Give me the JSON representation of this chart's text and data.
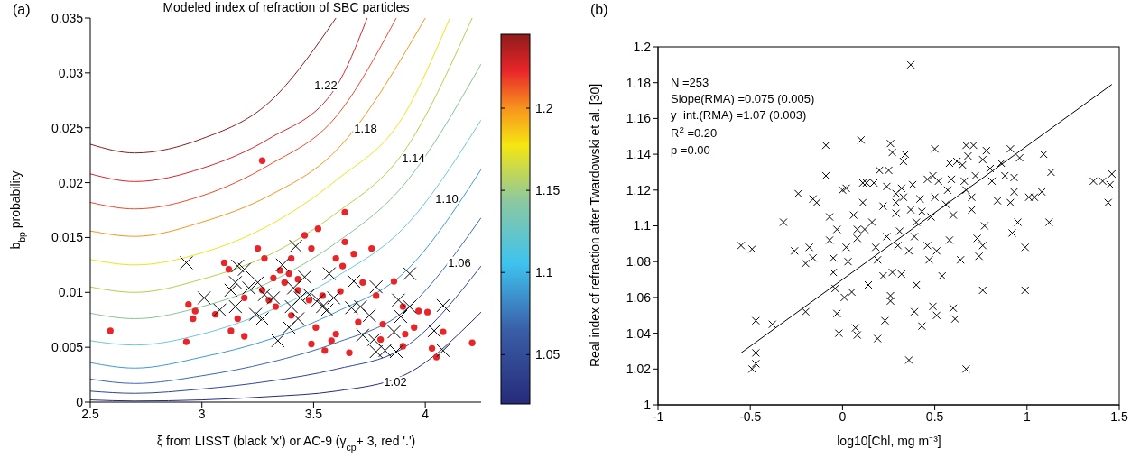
{
  "chart_data": [
    {
      "type": "scatter",
      "title": "Modeled index of refraction of SBC particles",
      "xlabel": "ξ from LISST (black 'x') or AC-9 (γ$_{cp}$+ 3, red '.')",
      "ylabel": "b$_{bp}$ probability",
      "xlim": [
        2.5,
        4.25
      ],
      "xticks": [
        2.5,
        3,
        3.5,
        4
      ],
      "ylim": [
        0,
        0.035
      ],
      "yticks": [
        0,
        0.005,
        0.01,
        0.015,
        0.02,
        0.025,
        0.03,
        0.035
      ],
      "clim": [
        1.02,
        1.245
      ],
      "cticks": [
        1.05,
        1.1,
        1.15,
        1.2
      ],
      "annotations": [
        "(a)",
        "1.22",
        "1.18",
        "1.14",
        "1.10",
        "1.06",
        "1.02"
      ],
      "series": [
        {
          "type": "line",
          "color": "#8f1c1c",
          "x": [
            2.5,
            2.7,
            3.0,
            3.3,
            3.6
          ],
          "values": [
            0.0235,
            0.0227,
            0.024,
            0.0273,
            0.035
          ]
        },
        {
          "type": "line",
          "color": "#d8262b",
          "x": [
            2.5,
            2.7,
            3.0,
            3.3,
            3.6,
            3.74
          ],
          "values": [
            0.0208,
            0.0201,
            0.0213,
            0.024,
            0.0287,
            0.035
          ]
        },
        {
          "type": "line",
          "color": "#ec4a2a",
          "x": [
            2.5,
            2.7,
            3.0,
            3.3,
            3.6,
            3.87
          ],
          "values": [
            0.0182,
            0.0176,
            0.0188,
            0.0216,
            0.026,
            0.035
          ]
        },
        {
          "type": "line",
          "color": "#f7941d",
          "x": [
            2.5,
            2.7,
            3.0,
            3.3,
            3.6,
            4.0
          ],
          "values": [
            0.0156,
            0.0151,
            0.0164,
            0.0188,
            0.0229,
            0.035
          ]
        },
        {
          "type": "line",
          "color": "#f2e21a",
          "x": [
            2.5,
            2.7,
            3.0,
            3.3,
            3.6,
            3.9,
            4.11
          ],
          "values": [
            0.013,
            0.0125,
            0.0136,
            0.0161,
            0.0202,
            0.026,
            0.035
          ]
        },
        {
          "type": "line",
          "color": "#b5cf4a",
          "x": [
            2.5,
            2.7,
            3.0,
            3.3,
            3.6,
            3.9,
            4.21
          ],
          "values": [
            0.0105,
            0.01,
            0.0112,
            0.0134,
            0.0172,
            0.0227,
            0.035
          ]
        },
        {
          "type": "line",
          "color": "#88c490",
          "x": [
            2.5,
            2.7,
            3.0,
            3.3,
            3.6,
            3.9,
            4.25
          ],
          "values": [
            0.0081,
            0.0076,
            0.0087,
            0.0109,
            0.0145,
            0.0197,
            0.0308
          ]
        },
        {
          "type": "line",
          "color": "#6cc6dc",
          "x": [
            2.5,
            2.7,
            3.0,
            3.3,
            3.6,
            3.9,
            4.25
          ],
          "values": [
            0.0056,
            0.0052,
            0.0062,
            0.0083,
            0.0114,
            0.0158,
            0.0257
          ]
        },
        {
          "type": "line",
          "color": "#3d9ad6",
          "x": [
            2.5,
            2.7,
            3.0,
            3.3,
            3.6,
            3.9,
            4.25
          ],
          "values": [
            0.0036,
            0.0031,
            0.0041,
            0.0057,
            0.0082,
            0.0117,
            0.0212
          ]
        },
        {
          "type": "line",
          "color": "#3a67b2",
          "x": [
            2.5,
            2.7,
            3.0,
            3.3,
            3.6,
            3.9,
            4.25
          ],
          "values": [
            0.0021,
            0.0017,
            0.0024,
            0.0036,
            0.0054,
            0.0082,
            0.0168
          ]
        },
        {
          "type": "line",
          "color": "#2e469c",
          "x": [
            2.5,
            2.7,
            3.0,
            3.3,
            3.6,
            3.9,
            4.25
          ],
          "values": [
            0.001,
            0.0008,
            0.0012,
            0.0019,
            0.003,
            0.0049,
            0.0124
          ]
        },
        {
          "type": "line",
          "color": "#262c80",
          "x": [
            2.5,
            2.7,
            3.0,
            3.3,
            3.6,
            3.9,
            4.25
          ],
          "values": [
            0.0002,
            0.0001,
            0.0002,
            0.0005,
            0.001,
            0.0024,
            0.0082
          ]
        },
        {
          "marker": "circle",
          "color": "#e8262a",
          "x": [
            2.59,
            2.93,
            2.94,
            2.96,
            2.97,
            3.06,
            3.1,
            3.12,
            3.13,
            3.16,
            3.19,
            3.19,
            3.25,
            3.27,
            3.28,
            3.3,
            3.32,
            3.35,
            3.37,
            3.39,
            3.4,
            3.43,
            3.46,
            3.49,
            3.52,
            3.51,
            3.49,
            3.55,
            3.58,
            3.6,
            3.6,
            3.63,
            3.64,
            3.64,
            3.66,
            3.68,
            3.72,
            3.76,
            3.78,
            3.8,
            3.86,
            3.9,
            3.9,
            3.91,
            3.95,
            3.97,
            4.01,
            4.03,
            4.05,
            4.08,
            4.21,
            3.43,
            3.48,
            3.54,
            3.33,
            3.4,
            3.27,
            3.62,
            3.7,
            3.81
          ],
          "values": [
            0.0065,
            0.0055,
            0.0089,
            0.0076,
            0.0083,
            0.008,
            0.0127,
            0.0121,
            0.0065,
            0.0076,
            0.006,
            0.0095,
            0.014,
            0.022,
            0.0131,
            0.0093,
            0.0113,
            0.012,
            0.0109,
            0.0117,
            0.0131,
            0.0112,
            0.0152,
            0.014,
            0.0158,
            0.0068,
            0.0053,
            0.0047,
            0.0056,
            0.0131,
            0.0062,
            0.0124,
            0.0146,
            0.0173,
            0.0045,
            0.0135,
            0.0109,
            0.014,
            0.0097,
            0.0057,
            0.011,
            0.0087,
            0.0051,
            0.0062,
            0.0068,
            0.0083,
            0.0082,
            0.0049,
            0.0041,
            0.0064,
            0.0054,
            0.0102,
            0.0093,
            0.0097,
            0.0087,
            0.0079,
            0.0102,
            0.0101,
            0.0073,
            0.0071
          ]
        },
        {
          "marker": "cross",
          "color": "#000000",
          "x": [
            2.93,
            3.01,
            3.08,
            3.16,
            3.19,
            3.15,
            3.13,
            3.15,
            3.21,
            3.24,
            3.27,
            3.25,
            3.28,
            3.32,
            3.36,
            3.34,
            3.39,
            3.4,
            3.42,
            3.41,
            3.44,
            3.43,
            3.46,
            3.48,
            3.52,
            3.54,
            3.57,
            3.56,
            3.59,
            3.67,
            3.68,
            3.71,
            3.75,
            3.78,
            3.72,
            3.77,
            3.78,
            3.82,
            3.86,
            3.87,
            3.88,
            3.89,
            3.93,
            3.93,
            4.04,
            4.08,
            4.08
          ],
          "values": [
            0.0127,
            0.0095,
            0.0084,
            0.0124,
            0.0121,
            0.0109,
            0.0102,
            0.0087,
            0.0104,
            0.008,
            0.0076,
            0.0109,
            0.0098,
            0.0095,
            0.0125,
            0.0056,
            0.0068,
            0.0087,
            0.0142,
            0.0104,
            0.0095,
            0.0076,
            0.0114,
            0.0098,
            0.0093,
            0.0087,
            0.0117,
            0.0084,
            0.0095,
            0.0086,
            0.011,
            0.0087,
            0.0079,
            0.0105,
            0.0061,
            0.0057,
            0.0046,
            0.0047,
            0.0064,
            0.0046,
            0.0093,
            0.0078,
            0.0117,
            0.0087,
            0.0065,
            0.0088,
            0.0047
          ]
        }
      ]
    },
    {
      "type": "scatter",
      "xlabel": "log10[Chl, mg m⁻³]",
      "ylabel": "Real index of refraction after Twardowski et al. [30]",
      "xlim": [
        -1,
        1.5
      ],
      "xticks": [
        -1,
        -0.5,
        0,
        0.5,
        1,
        1.5
      ],
      "ylim": [
        1,
        1.2
      ],
      "yticks": [
        1,
        1.02,
        1.04,
        1.06,
        1.08,
        1.1,
        1.12,
        1.14,
        1.16,
        1.18,
        1.2
      ],
      "annotations": [
        "(b)",
        "N =253",
        "Slope(RMA) =0.075 (0.005)",
        "y−int.(RMA) =1.07 (0.003)",
        "R$^{2}$ =0.20",
        "p =0.00"
      ],
      "series": [
        {
          "marker": "cross",
          "color": "#000000",
          "x": [
            -0.55,
            -0.49,
            -0.47,
            -0.47,
            -0.49,
            -0.47,
            -0.38,
            -0.32,
            -0.26,
            -0.24,
            -0.2,
            -0.2,
            -0.18,
            -0.16,
            -0.16,
            -0.14,
            -0.09,
            -0.09,
            -0.07,
            -0.07,
            -0.05,
            -0.05,
            -0.04,
            -0.03,
            -0.03,
            -0.02,
            0.0,
            0.02,
            0.02,
            0.03,
            0.01,
            0.05,
            0.06,
            0.07,
            0.08,
            0.08,
            0.08,
            0.1,
            0.11,
            0.11,
            0.12,
            0.13,
            0.14,
            0.16,
            0.17,
            0.18,
            0.19,
            0.19,
            0.2,
            0.22,
            0.22,
            0.23,
            0.24,
            0.24,
            0.25,
            0.26,
            0.26,
            0.26,
            0.27,
            0.27,
            0.29,
            0.29,
            0.29,
            0.3,
            0.31,
            0.32,
            0.32,
            0.33,
            0.33,
            0.34,
            0.36,
            0.36,
            0.37,
            0.37,
            0.38,
            0.39,
            0.39,
            0.4,
            0.4,
            0.42,
            0.43,
            0.43,
            0.46,
            0.46,
            0.47,
            0.48,
            0.49,
            0.49,
            0.5,
            0.5,
            0.51,
            0.51,
            0.52,
            0.54,
            0.56,
            0.57,
            0.58,
            0.58,
            0.59,
            0.6,
            0.6,
            0.61,
            0.62,
            0.64,
            0.65,
            0.66,
            0.67,
            0.67,
            0.67,
            0.68,
            0.7,
            0.7,
            0.71,
            0.72,
            0.73,
            0.74,
            0.76,
            0.76,
            0.76,
            0.77,
            0.78,
            0.8,
            0.81,
            0.84,
            0.86,
            0.88,
            0.91,
            0.91,
            0.92,
            0.93,
            0.93,
            0.95,
            0.96,
            0.99,
            0.99,
            1.01,
            1.04,
            1.08,
            1.09,
            1.12,
            1.13,
            1.36,
            1.41,
            1.45,
            1.44,
            1.46
          ],
          "values": [
            1.089,
            1.087,
            1.047,
            1.029,
            1.02,
            1.023,
            1.045,
            1.102,
            1.086,
            1.118,
            1.079,
            1.052,
            1.088,
            1.115,
            1.082,
            1.113,
            1.145,
            1.128,
            1.105,
            1.092,
            1.082,
            1.074,
            1.065,
            1.051,
            1.098,
            1.04,
            1.12,
            1.121,
            1.088,
            1.08,
            1.06,
            1.063,
            1.106,
            1.043,
            1.093,
            1.098,
            1.039,
            1.148,
            1.113,
            1.124,
            1.098,
            1.124,
            1.067,
            1.102,
            1.124,
            1.088,
            1.037,
            1.081,
            1.131,
            1.072,
            1.111,
            1.047,
            1.122,
            1.094,
            1.131,
            1.061,
            1.146,
            1.058,
            1.141,
            1.074,
            1.107,
            1.118,
            1.113,
            1.089,
            1.097,
            1.073,
            1.121,
            1.136,
            1.116,
            1.14,
            1.086,
            1.025,
            1.19,
            1.109,
            1.123,
            1.094,
            1.052,
            1.067,
            1.102,
            1.115,
            1.108,
            1.044,
            1.089,
            1.126,
            1.081,
            1.105,
            1.128,
            1.055,
            1.116,
            1.143,
            1.086,
            1.05,
            1.125,
            1.072,
            1.112,
            1.12,
            1.135,
            1.092,
            1.126,
            1.054,
            1.106,
            1.048,
            1.136,
            1.081,
            1.134,
            1.125,
            1.145,
            1.12,
            1.02,
            1.139,
            1.116,
            1.109,
            1.145,
            1.128,
            1.093,
            1.083,
            1.137,
            1.089,
            1.064,
            1.1,
            1.142,
            1.132,
            1.125,
            1.114,
            1.135,
            1.128,
            1.113,
            1.143,
            1.096,
            1.127,
            1.119,
            1.102,
            1.138,
            1.088,
            1.064,
            1.116,
            1.116,
            1.119,
            1.14,
            1.102,
            1.13,
            1.125,
            1.125,
            1.123,
            1.113,
            1.129
          ]
        },
        {
          "type": "line",
          "color": "#000000",
          "x": [
            -0.55,
            1.46
          ],
          "values": [
            1.029,
            1.179
          ]
        }
      ]
    }
  ]
}
